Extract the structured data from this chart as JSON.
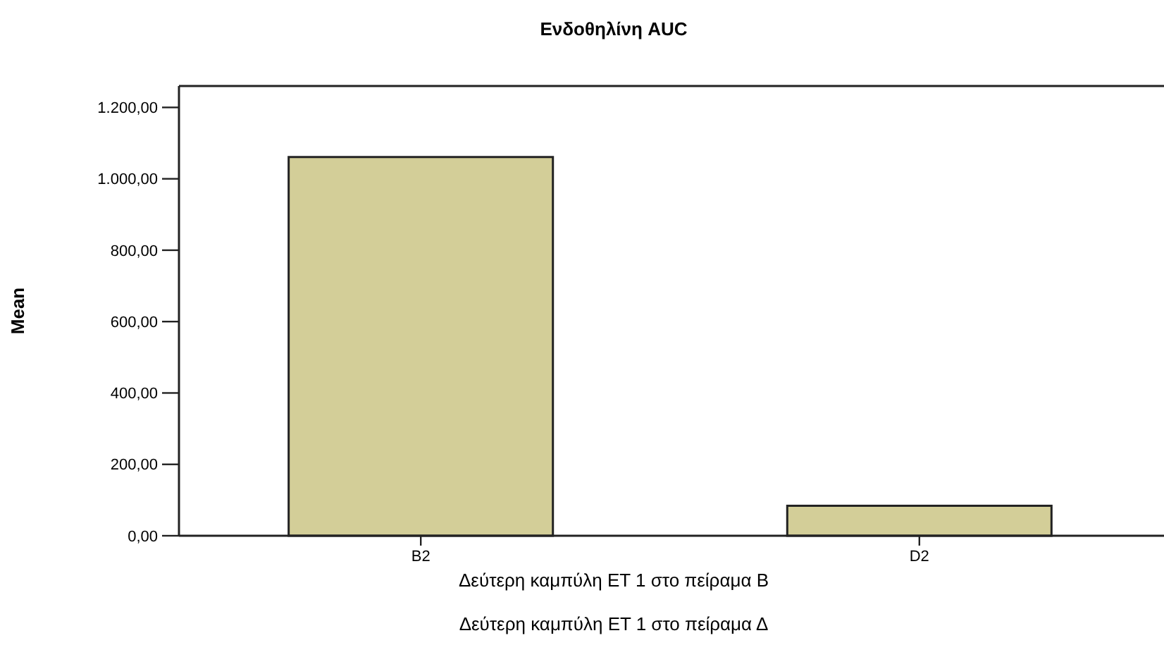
{
  "chart_data": {
    "type": "bar",
    "title": "Ενδοθηλίνη AUC",
    "ylabel": "Mean",
    "annotations": [
      "Δεύτερη καμπύλη ET 1 στο πείραμα B",
      "Δεύτερη καμπύλη ET 1 στο πείραμα Δ"
    ],
    "categories": [
      "B2",
      "D2"
    ],
    "values": [
      1061,
      84
    ],
    "color": "#d3ce98",
    "ylim": [
      0,
      1260
    ],
    "yticks": [
      {
        "value": 0,
        "label": "0,00"
      },
      {
        "value": 200,
        "label": "200,00"
      },
      {
        "value": 400,
        "label": "400,00"
      },
      {
        "value": 600,
        "label": "600,00"
      },
      {
        "value": 800,
        "label": "800,00"
      },
      {
        "value": 1000,
        "label": "1.000,00"
      },
      {
        "value": 1200,
        "label": "1.200,00"
      }
    ],
    "grid": false
  }
}
